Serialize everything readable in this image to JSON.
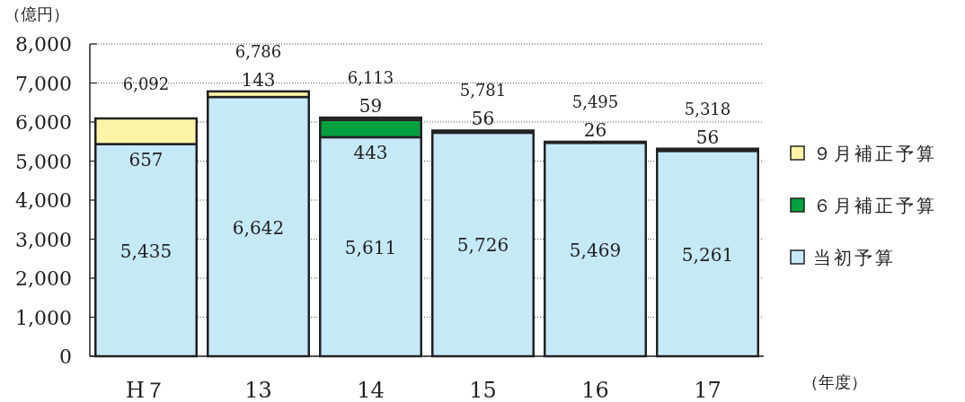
{
  "chart_data": {
    "type": "bar",
    "stacked": true,
    "ylabel": "（億円）",
    "xlabel": "（年度）",
    "categories": [
      "H７",
      "13",
      "14",
      "15",
      "16",
      "17"
    ],
    "series": [
      {
        "name": "当初予算",
        "color": "#c6e9f8",
        "values": [
          5435,
          6642,
          5611,
          5726,
          5469,
          5261
        ],
        "value_labels": [
          "5,435",
          "6,642",
          "5,611",
          "5,726",
          "5,469",
          "5,261"
        ]
      },
      {
        "name": "６月補正予算",
        "color": "#00a040",
        "values": [
          null,
          null,
          443,
          56,
          26,
          null
        ],
        "value_labels": [
          null,
          null,
          "443",
          "56",
          "26",
          null
        ]
      },
      {
        "name": "９月補正予算",
        "color": "#fdf5a6",
        "values": [
          657,
          143,
          59,
          null,
          null,
          56
        ],
        "value_labels": [
          "657",
          "143",
          "59",
          null,
          null,
          "56"
        ]
      }
    ],
    "totals": [
      "6,092",
      "6,786",
      "6,113",
      "5,781",
      "5,495",
      "5,318"
    ],
    "ylim": [
      0,
      8000
    ],
    "yticks": [
      0,
      {
        "value": 1000,
        "label": "1,000"
      },
      {
        "value": 2000,
        "label": "2,000"
      },
      {
        "value": 3000,
        "label": "3,000"
      },
      {
        "value": 4000,
        "label": "4,000"
      },
      {
        "value": 5000,
        "label": "5,000"
      },
      {
        "value": 6000,
        "label": "6,000"
      },
      {
        "value": 7000,
        "label": "7,000"
      },
      {
        "value": 8000,
        "label": "8,000"
      }
    ],
    "grid": "y",
    "legend": "right"
  }
}
